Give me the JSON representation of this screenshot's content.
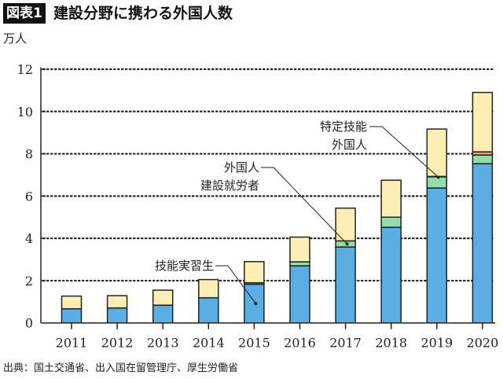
{
  "header": {
    "badge": "図表1",
    "title": "建設分野に携わる外国人数"
  },
  "footer": {
    "source": "出典：国土交通省、出入国在留管理庁、厚生労働省"
  },
  "chart_data": {
    "type": "bar",
    "stacked": true,
    "title": "建設分野に携わる外国人数",
    "ylabel": "万人",
    "xlabel": "",
    "ylim": [
      0,
      12
    ],
    "yticks": [
      0,
      2,
      4,
      6,
      8,
      10,
      12
    ],
    "grid": "horizontal dotted",
    "categories": [
      "2011",
      "2012",
      "2013",
      "2014",
      "2015",
      "2016",
      "2017",
      "2018",
      "2019",
      "2020"
    ],
    "series": [
      {
        "name": "技能実習生",
        "color": "#5aaee3",
        "values": [
          0.67,
          0.71,
          0.84,
          1.19,
          1.83,
          2.7,
          3.59,
          4.52,
          6.38,
          7.53
        ]
      },
      {
        "name": "外国人建設就労者",
        "color": "#93dcae",
        "values": [
          0,
          0,
          0,
          0,
          0.07,
          0.19,
          0.29,
          0.48,
          0.53,
          0.41
        ]
      },
      {
        "name": "特定技能外国人",
        "color": "#f0a060",
        "values": [
          0,
          0,
          0,
          0,
          0,
          0,
          0,
          0,
          0.02,
          0.15
        ]
      },
      {
        "color": "#fdeeb5",
        "values": [
          0.6,
          0.58,
          0.71,
          0.86,
          1.0,
          1.17,
          1.55,
          1.75,
          2.24,
          2.81
        ]
      }
    ],
    "annotations": [
      {
        "lines": [
          "技能実習生"
        ],
        "series": 0,
        "category": "2015"
      },
      {
        "lines": [
          "外国人",
          "建設就労者"
        ],
        "series": 1,
        "category": "2017"
      },
      {
        "lines": [
          "特定技能",
          "外国人"
        ],
        "series": 2,
        "category": "2019"
      }
    ]
  }
}
